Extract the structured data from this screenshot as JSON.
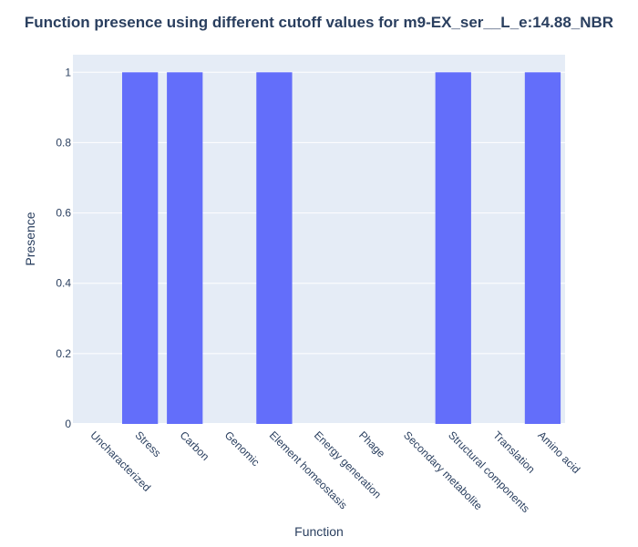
{
  "chart_data": {
    "type": "bar",
    "title": "Function presence using different cutoff values for m9-EX_ser__L_e:14.88_NBR",
    "xlabel": "Function",
    "ylabel": "Presence",
    "categories": [
      "Uncharacterized",
      "Stress",
      "Carbon",
      "Genomic",
      "Element homeostasis",
      "Energy generation",
      "Phage",
      "Secondary metabolite",
      "Structural components",
      "Translation",
      "Amino acid"
    ],
    "values": [
      0,
      1,
      1,
      0,
      1,
      0,
      0,
      0,
      1,
      0,
      1
    ],
    "ylim": [
      0,
      1.05
    ],
    "yticks": [
      0,
      0.2,
      0.4,
      0.6,
      0.8,
      1
    ],
    "ytick_labels": [
      "0",
      "0.2",
      "0.4",
      "0.6",
      "0.8",
      "1"
    ],
    "grid": true,
    "legend": "none",
    "colors": {
      "bar": "#636efa",
      "plot_bg": "#e5ecf6",
      "grid": "#ffffff",
      "text": "#2a3f5f"
    }
  }
}
